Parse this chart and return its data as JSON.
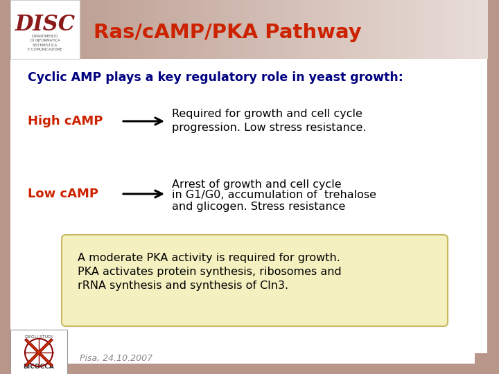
{
  "bg_color": "#b8978a",
  "content_bg": "#ffffff",
  "header_bg": "#b8978a",
  "title": "Ras/cAMP/PKA Pathway",
  "title_color": "#cc2200",
  "subtitle": "Cyclic AMP plays a key regulatory role in yeast growth:",
  "subtitle_color": "#000080",
  "high_label": "High cAMP",
  "low_label": "Low cAMP",
  "label_color": "#cc2200",
  "high_text_line1": "Required for growth and cell cycle",
  "high_text_line2": "progression. Low stress resistance.",
  "low_text_line1": "Arrest of growth and cell cycle",
  "low_text_line2": "in G1/G0, accumulation of  trehalose",
  "low_text_line3": "and glicogen. Stress resistance",
  "box_text_line1": "A moderate PKA activity is required for growth.",
  "box_text_line2": "PKA activates protein synthesis, ribosomes and",
  "box_text_line3": "rRNA synthesis and synthesis of Cln3.",
  "box_bg": "#f5f0c0",
  "box_border": "#c8b860",
  "footer_text": "Pisa, 24.10.2007",
  "footer_color": "#888888",
  "arrow_color": "#000000",
  "text_color": "#000000",
  "border_color": "#b8978a"
}
